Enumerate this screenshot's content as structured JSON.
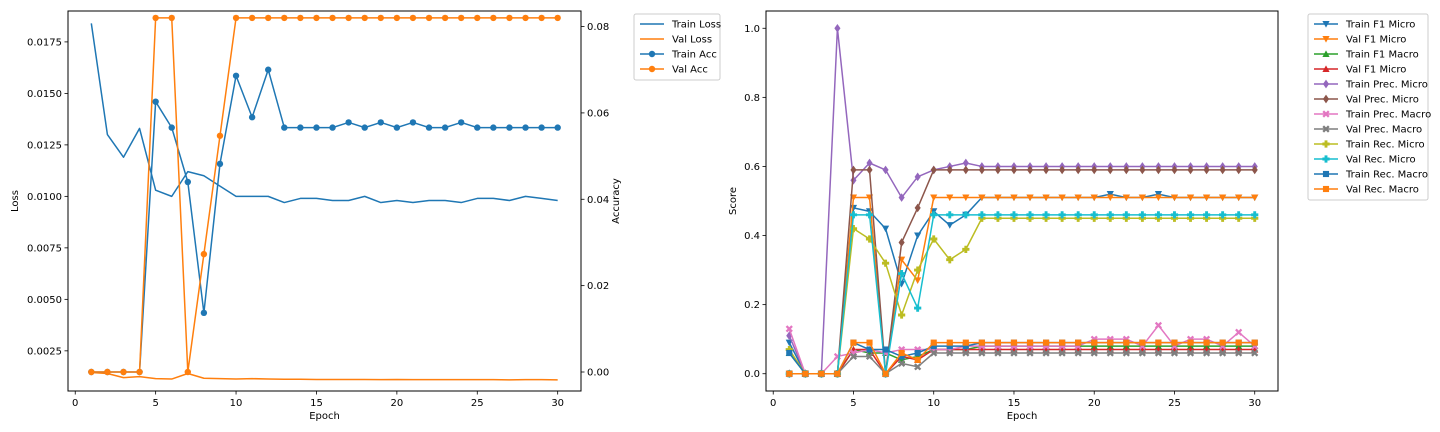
{
  "chart_data": [
    {
      "type": "line",
      "xlabel": "Epoch",
      "ylabel": "Loss",
      "y2label": "Accuracy",
      "xlim": [
        -0.45,
        31.45
      ],
      "ylim": [
        0.00055,
        0.019
      ],
      "y2lim": [
        -0.0044,
        0.0836
      ],
      "xticks": [
        0,
        5,
        10,
        15,
        20,
        25,
        30
      ],
      "yticks": [
        0.0025,
        0.005,
        0.0075,
        0.01,
        0.0125,
        0.015,
        0.0175
      ],
      "ytick_labels": [
        "0.0025",
        "0.0050",
        "0.0075",
        "0.0100",
        "0.0125",
        "0.0150",
        "0.0175"
      ],
      "y2ticks": [
        0.0,
        0.02,
        0.04,
        0.06,
        0.08
      ],
      "y2tick_labels": [
        "0.00",
        "0.02",
        "0.04",
        "0.06",
        "0.08"
      ],
      "x": [
        1,
        2,
        3,
        4,
        5,
        6,
        7,
        8,
        9,
        10,
        11,
        12,
        13,
        14,
        15,
        16,
        17,
        18,
        19,
        20,
        21,
        22,
        23,
        24,
        25,
        26,
        27,
        28,
        29,
        30
      ],
      "legend_position": "outside-right",
      "series": [
        {
          "name": "Train Loss",
          "axis": "left",
          "color": "#1f77b4",
          "marker": "none",
          "values": [
            0.0184,
            0.013,
            0.0119,
            0.0133,
            0.0103,
            0.01,
            0.0112,
            0.011,
            0.0105,
            0.01,
            0.01,
            0.01,
            0.0097,
            0.0099,
            0.0099,
            0.0098,
            0.0098,
            0.01,
            0.0097,
            0.0098,
            0.0097,
            0.0098,
            0.0098,
            0.0097,
            0.0099,
            0.0099,
            0.0098,
            0.01,
            0.0099,
            0.0098
          ]
        },
        {
          "name": "Val Loss",
          "axis": "left",
          "color": "#ff7f0e",
          "marker": "none",
          "values": [
            0.00145,
            0.0014,
            0.0012,
            0.00125,
            0.00115,
            0.00113,
            0.0014,
            0.00117,
            0.00115,
            0.00113,
            0.00115,
            0.00113,
            0.00112,
            0.00112,
            0.00111,
            0.00111,
            0.00111,
            0.00111,
            0.0011,
            0.00111,
            0.0011,
            0.0011,
            0.0011,
            0.0011,
            0.0011,
            0.0011,
            0.00109,
            0.0011,
            0.0011,
            0.00109
          ]
        },
        {
          "name": "Train Acc",
          "axis": "right",
          "color": "#1f77b4",
          "marker": "circle",
          "values": [
            0.0,
            0.0,
            0.0,
            0.0,
            0.0626,
            0.0566,
            0.044,
            0.0137,
            0.0482,
            0.0686,
            0.059,
            0.07,
            0.0566,
            0.0566,
            0.0566,
            0.0566,
            0.0578,
            0.0566,
            0.0578,
            0.0566,
            0.0578,
            0.0566,
            0.0566,
            0.0578,
            0.0566,
            0.0566,
            0.0566,
            0.0566,
            0.0566,
            0.0566
          ]
        },
        {
          "name": "Val Acc",
          "axis": "right",
          "color": "#ff7f0e",
          "marker": "circle",
          "values": [
            0.0,
            0.0,
            0.0,
            0.0,
            0.082,
            0.082,
            0.0,
            0.0273,
            0.0547,
            0.082,
            0.082,
            0.082,
            0.082,
            0.082,
            0.082,
            0.082,
            0.082,
            0.082,
            0.082,
            0.082,
            0.082,
            0.082,
            0.082,
            0.082,
            0.082,
            0.082,
            0.082,
            0.082,
            0.082,
            0.082
          ]
        }
      ]
    },
    {
      "type": "line",
      "xlabel": "Epoch",
      "ylabel": "Score",
      "xlim": [
        -0.45,
        31.45
      ],
      "ylim": [
        -0.05,
        1.05
      ],
      "xticks": [
        0,
        5,
        10,
        15,
        20,
        25,
        30
      ],
      "yticks": [
        0.0,
        0.2,
        0.4,
        0.6,
        0.8,
        1.0
      ],
      "ytick_labels": [
        "0.0",
        "0.2",
        "0.4",
        "0.6",
        "0.8",
        "1.0"
      ],
      "x": [
        1,
        2,
        3,
        4,
        5,
        6,
        7,
        8,
        9,
        10,
        11,
        12,
        13,
        14,
        15,
        16,
        17,
        18,
        19,
        20,
        21,
        22,
        23,
        24,
        25,
        26,
        27,
        28,
        29,
        30
      ],
      "legend_position": "outside-right",
      "series": [
        {
          "name": "Train F1 Micro",
          "color": "#1f77b4",
          "marker": "triangle-down",
          "values": [
            0.09,
            0.0,
            0.0,
            0.0,
            0.48,
            0.47,
            0.42,
            0.26,
            0.4,
            0.47,
            0.43,
            0.46,
            0.51,
            0.51,
            0.51,
            0.51,
            0.51,
            0.51,
            0.51,
            0.51,
            0.52,
            0.51,
            0.51,
            0.52,
            0.51,
            0.51,
            0.51,
            0.51,
            0.51,
            0.51
          ]
        },
        {
          "name": "Val F1 Micro",
          "color": "#ff7f0e",
          "marker": "triangle-down",
          "values": [
            0.0,
            0.0,
            0.0,
            0.0,
            0.51,
            0.51,
            0.0,
            0.33,
            0.27,
            0.51,
            0.51,
            0.51,
            0.51,
            0.51,
            0.51,
            0.51,
            0.51,
            0.51,
            0.51,
            0.51,
            0.51,
            0.51,
            0.51,
            0.51,
            0.51,
            0.51,
            0.51,
            0.51,
            0.51,
            0.51
          ]
        },
        {
          "name": "Train F1 Macro",
          "color": "#2ca02c",
          "marker": "triangle-up",
          "values": [
            0.06,
            0.0,
            0.0,
            0.0,
            0.07,
            0.06,
            0.06,
            0.04,
            0.05,
            0.07,
            0.07,
            0.07,
            0.08,
            0.08,
            0.08,
            0.08,
            0.08,
            0.08,
            0.08,
            0.08,
            0.08,
            0.08,
            0.08,
            0.08,
            0.08,
            0.08,
            0.08,
            0.08,
            0.08,
            0.08
          ]
        },
        {
          "name": "Val F1 Micro",
          "color": "#d62728",
          "marker": "triangle-up",
          "values": [
            0.0,
            0.0,
            0.0,
            0.0,
            0.07,
            0.07,
            0.0,
            0.05,
            0.04,
            0.07,
            0.07,
            0.07,
            0.07,
            0.07,
            0.07,
            0.07,
            0.07,
            0.07,
            0.07,
            0.07,
            0.07,
            0.07,
            0.07,
            0.07,
            0.07,
            0.07,
            0.07,
            0.07,
            0.07,
            0.07
          ]
        },
        {
          "name": "Train Prec. Micro",
          "color": "#9467bd",
          "marker": "diamond",
          "values": [
            0.11,
            0.0,
            0.0,
            1.0,
            0.56,
            0.61,
            0.59,
            0.51,
            0.57,
            0.59,
            0.6,
            0.61,
            0.6,
            0.6,
            0.6,
            0.6,
            0.6,
            0.6,
            0.6,
            0.6,
            0.6,
            0.6,
            0.6,
            0.6,
            0.6,
            0.6,
            0.6,
            0.6,
            0.6,
            0.6
          ]
        },
        {
          "name": "Val Prec. Micro",
          "color": "#8c564b",
          "marker": "diamond",
          "values": [
            0.0,
            0.0,
            0.0,
            0.0,
            0.59,
            0.59,
            0.0,
            0.38,
            0.48,
            0.59,
            0.59,
            0.59,
            0.59,
            0.59,
            0.59,
            0.59,
            0.59,
            0.59,
            0.59,
            0.59,
            0.59,
            0.59,
            0.59,
            0.59,
            0.59,
            0.59,
            0.59,
            0.59,
            0.59,
            0.59
          ]
        },
        {
          "name": "Train Prec. Macro",
          "color": "#e377c2",
          "marker": "x",
          "values": [
            0.13,
            0.0,
            0.0,
            0.05,
            0.06,
            0.07,
            0.06,
            0.07,
            0.07,
            0.07,
            0.07,
            0.08,
            0.08,
            0.08,
            0.08,
            0.08,
            0.08,
            0.08,
            0.08,
            0.1,
            0.1,
            0.1,
            0.08,
            0.14,
            0.08,
            0.1,
            0.1,
            0.08,
            0.12,
            0.08
          ]
        },
        {
          "name": "Val Prec. Macro",
          "color": "#7f7f7f",
          "marker": "x",
          "values": [
            0.0,
            0.0,
            0.0,
            0.0,
            0.05,
            0.05,
            0.0,
            0.03,
            0.02,
            0.06,
            0.06,
            0.06,
            0.06,
            0.06,
            0.06,
            0.06,
            0.06,
            0.06,
            0.06,
            0.06,
            0.06,
            0.06,
            0.06,
            0.06,
            0.06,
            0.06,
            0.06,
            0.06,
            0.06,
            0.06
          ]
        },
        {
          "name": "Train Rec. Micro",
          "color": "#bcbd22",
          "marker": "plus",
          "values": [
            0.07,
            0.0,
            0.0,
            0.0,
            0.42,
            0.39,
            0.32,
            0.17,
            0.3,
            0.39,
            0.33,
            0.36,
            0.45,
            0.45,
            0.45,
            0.45,
            0.45,
            0.45,
            0.45,
            0.45,
            0.45,
            0.45,
            0.45,
            0.45,
            0.45,
            0.45,
            0.45,
            0.45,
            0.45,
            0.45
          ]
        },
        {
          "name": "Val Rec. Micro",
          "color": "#17becf",
          "marker": "plus",
          "values": [
            0.0,
            0.0,
            0.0,
            0.0,
            0.46,
            0.46,
            0.0,
            0.29,
            0.19,
            0.46,
            0.46,
            0.46,
            0.46,
            0.46,
            0.46,
            0.46,
            0.46,
            0.46,
            0.46,
            0.46,
            0.46,
            0.46,
            0.46,
            0.46,
            0.46,
            0.46,
            0.46,
            0.46,
            0.46,
            0.46
          ]
        },
        {
          "name": "Train Rec. Macro",
          "color": "#1f77b4",
          "marker": "square",
          "values": [
            0.06,
            0.0,
            0.0,
            0.0,
            0.09,
            0.07,
            0.07,
            0.05,
            0.06,
            0.08,
            0.08,
            0.08,
            0.09,
            0.09,
            0.09,
            0.09,
            0.09,
            0.09,
            0.09,
            0.09,
            0.09,
            0.09,
            0.09,
            0.09,
            0.09,
            0.09,
            0.09,
            0.09,
            0.09,
            0.09
          ]
        },
        {
          "name": "Val Rec. Macro",
          "color": "#ff7f0e",
          "marker": "square",
          "values": [
            0.0,
            0.0,
            0.0,
            0.0,
            0.09,
            0.09,
            0.0,
            0.06,
            0.04,
            0.09,
            0.09,
            0.09,
            0.09,
            0.09,
            0.09,
            0.09,
            0.09,
            0.09,
            0.09,
            0.09,
            0.09,
            0.09,
            0.09,
            0.09,
            0.09,
            0.09,
            0.09,
            0.09,
            0.09,
            0.09
          ]
        }
      ]
    }
  ]
}
